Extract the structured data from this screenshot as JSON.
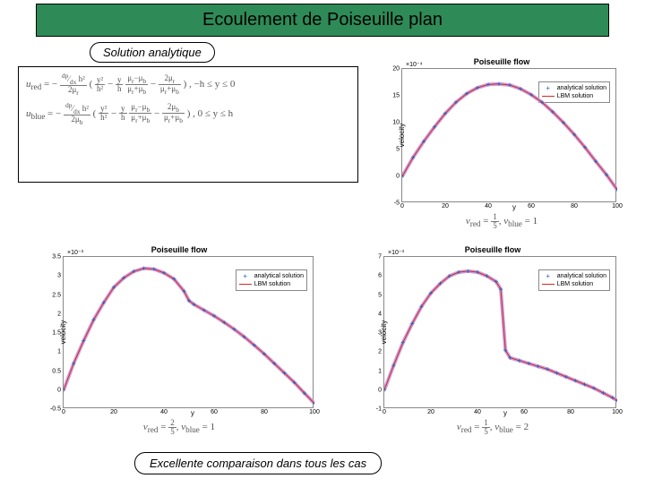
{
  "title": "Ecoulement de Poiseuille plan",
  "solution_label": "Solution analytique",
  "footer": "Excellente comparaison dans tous les cas",
  "formula": {
    "line1_prefix": "u_red = −",
    "line1_suffix": ", −h ≤ y ≤ 0",
    "line2_prefix": "u_blue = −",
    "line2_suffix": ", 0 ≤ y ≤ h"
  },
  "legend": {
    "item1": "analytical solution",
    "item2": "LBM solution",
    "color1": "#1f5fbf",
    "color2": "#d62728"
  },
  "chart_common": {
    "title": "Poiseuille flow",
    "xlabel": "y",
    "ylabel": "velocity",
    "xtick_vals": [
      0,
      20,
      40,
      60,
      80,
      100
    ],
    "curve_color_fill": "#c9a0dc",
    "curve_color_line": "#d62728",
    "curve_cross_color": "#1f5fbf",
    "grid_color": "#ffffff",
    "background": "#ffffff",
    "line_width": 1
  },
  "chart_top_right": {
    "caption": "ν_red = 1/5, ν_blue = 1",
    "exp": "×10⁻⁴",
    "ylim": [
      -5,
      20
    ],
    "yticks": [
      -5,
      0,
      5,
      10,
      15,
      20
    ],
    "points": [
      [
        0,
        0
      ],
      [
        5,
        3.5
      ],
      [
        10,
        6.5
      ],
      [
        15,
        9.2
      ],
      [
        20,
        11.7
      ],
      [
        25,
        13.8
      ],
      [
        30,
        15.4
      ],
      [
        35,
        16.5
      ],
      [
        40,
        17.1
      ],
      [
        45,
        17.2
      ],
      [
        50,
        17.0
      ],
      [
        55,
        16.3
      ],
      [
        60,
        15.2
      ],
      [
        65,
        13.8
      ],
      [
        70,
        12.0
      ],
      [
        75,
        10.0
      ],
      [
        80,
        7.8
      ],
      [
        85,
        5.4
      ],
      [
        90,
        2.8
      ],
      [
        95,
        0.3
      ],
      [
        100,
        -2.5
      ]
    ]
  },
  "chart_bottom_left": {
    "caption": "ν_red = 2/5, ν_blue = 1",
    "exp": "×10⁻³",
    "ylim": [
      -0.5,
      3.5
    ],
    "yticks": [
      -0.5,
      0,
      0.5,
      1,
      1.5,
      2,
      2.5,
      3,
      3.5
    ],
    "points": [
      [
        0,
        0
      ],
      [
        4,
        0.7
      ],
      [
        8,
        1.3
      ],
      [
        12,
        1.85
      ],
      [
        16,
        2.3
      ],
      [
        20,
        2.7
      ],
      [
        24,
        2.95
      ],
      [
        28,
        3.12
      ],
      [
        32,
        3.2
      ],
      [
        36,
        3.18
      ],
      [
        40,
        3.08
      ],
      [
        44,
        2.92
      ],
      [
        48,
        2.6
      ],
      [
        50,
        2.35
      ],
      [
        52,
        2.25
      ],
      [
        56,
        2.1
      ],
      [
        60,
        1.95
      ],
      [
        64,
        1.78
      ],
      [
        68,
        1.6
      ],
      [
        72,
        1.4
      ],
      [
        76,
        1.18
      ],
      [
        80,
        0.95
      ],
      [
        84,
        0.7
      ],
      [
        88,
        0.45
      ],
      [
        92,
        0.2
      ],
      [
        96,
        -0.08
      ],
      [
        100,
        -0.35
      ]
    ]
  },
  "chart_bottom_right": {
    "caption": "ν_red = 1/5, ν_blue = 2",
    "exp": "×10⁻³",
    "ylim": [
      -1,
      7
    ],
    "yticks": [
      -1,
      0,
      1,
      2,
      3,
      4,
      5,
      6,
      7
    ],
    "points": [
      [
        0,
        0
      ],
      [
        4,
        1.3
      ],
      [
        8,
        2.5
      ],
      [
        12,
        3.5
      ],
      [
        16,
        4.4
      ],
      [
        20,
        5.1
      ],
      [
        24,
        5.6
      ],
      [
        28,
        6.0
      ],
      [
        32,
        6.2
      ],
      [
        36,
        6.25
      ],
      [
        40,
        6.2
      ],
      [
        44,
        6.0
      ],
      [
        48,
        5.7
      ],
      [
        50,
        5.3
      ],
      [
        52,
        2.1
      ],
      [
        54,
        1.7
      ],
      [
        58,
        1.55
      ],
      [
        62,
        1.4
      ],
      [
        66,
        1.25
      ],
      [
        70,
        1.1
      ],
      [
        74,
        0.9
      ],
      [
        78,
        0.7
      ],
      [
        82,
        0.5
      ],
      [
        86,
        0.3
      ],
      [
        90,
        0.1
      ],
      [
        94,
        -0.15
      ],
      [
        98,
        -0.4
      ],
      [
        100,
        -0.55
      ]
    ]
  }
}
